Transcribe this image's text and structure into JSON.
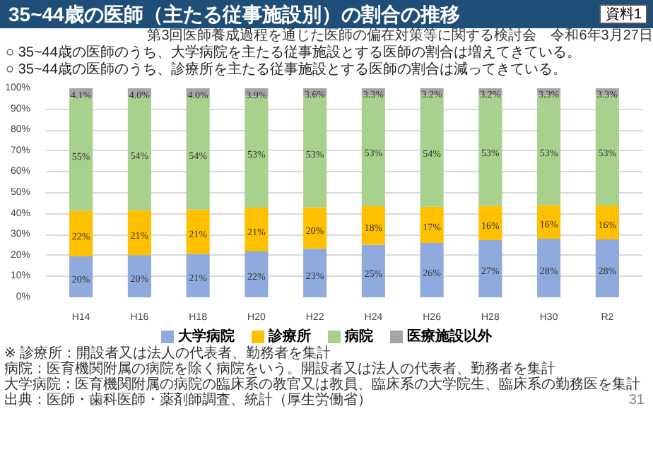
{
  "chart_data": {
    "type": "bar",
    "stacked": true,
    "title": "35~44歳の医師（主たる従事施設別）の割合の推移",
    "subtitle": "○ 35~44歳の医師のうち、大学病院を主たる従事施設とする医師の割合は増えてきている。\n○ 35~44歳の医師のうち、診療所を主たる従事施設とする医師の割合は減ってきている。",
    "categories": [
      "H14",
      "H16",
      "H18",
      "H20",
      "H22",
      "H24",
      "H26",
      "H28",
      "H30",
      "R2"
    ],
    "series": [
      {
        "name": "大学病院",
        "color": "#8faadc",
        "values": [
          19.6,
          20.2,
          20.8,
          22.0,
          23.2,
          25.2,
          26.0,
          27.4,
          28.0,
          27.7
        ],
        "value_labels": [
          "20%",
          "20%",
          "21%",
          "22%",
          "23%",
          "25%",
          "26%",
          "27%",
          "28%",
          "28%"
        ]
      },
      {
        "name": "診療所",
        "color": "#ffc000",
        "values": [
          21.8,
          21.4,
          21.2,
          20.9,
          19.9,
          18.4,
          17.3,
          16.3,
          16.1,
          16.2
        ],
        "value_labels": [
          "22%",
          "21%",
          "21%",
          "21%",
          "20%",
          "18%",
          "17%",
          "16%",
          "16%",
          "16%"
        ]
      },
      {
        "name": "病院",
        "color": "#a9d18e",
        "values": [
          54.5,
          54.4,
          54.0,
          53.2,
          53.3,
          53.1,
          53.5,
          53.1,
          52.6,
          52.8
        ],
        "value_labels": [
          "55%",
          "54%",
          "54%",
          "53%",
          "53%",
          "53%",
          "54%",
          "53%",
          "53%",
          "53%"
        ]
      },
      {
        "name": "医療施設以外",
        "color": "#a5a5a5",
        "values": [
          4.1,
          4.0,
          4.0,
          3.9,
          3.6,
          3.3,
          3.2,
          3.2,
          3.3,
          3.3
        ],
        "value_labels": [
          "4.1%",
          "4.0%",
          "4.0%",
          "3.9%",
          "3.6%",
          "3.3%",
          "3.2%",
          "3.2%",
          "3.3%",
          "3.3%"
        ]
      }
    ],
    "ylim": [
      0,
      100
    ],
    "yticks": [
      {
        "value": 0,
        "label": "0%"
      },
      {
        "value": 10,
        "label": "10%"
      },
      {
        "value": 20,
        "label": "20%"
      },
      {
        "value": 30,
        "label": "30%"
      },
      {
        "value": 40,
        "label": "40%"
      },
      {
        "value": 50,
        "label": "50%"
      },
      {
        "value": 60,
        "label": "60%"
      },
      {
        "value": 70,
        "label": "70%"
      },
      {
        "value": 80,
        "label": "80%"
      },
      {
        "value": 90,
        "label": "90%"
      },
      {
        "value": 100,
        "label": "100%"
      }
    ],
    "grid": "y",
    "legend": "bottom",
    "annotations": [
      "第3回医師養成過程を通じた医師の偏在対策等に関する検討会　令和6年3月27日",
      "資料1",
      "※ 診療所：開設者又は法人の代表者、勤務者を集計",
      "病院：医育機関附属の病院を除く病院をいう。開設者又は法人の代表者、勤務者を集計",
      "大学病院：医育機関附属の病院の臨床系の教官又は教員、臨床系の大学院生、臨床系の勤務医を集計",
      "出典：医師・歯科医師・薬剤師調査、統計（厚生労働省）",
      "31"
    ]
  }
}
